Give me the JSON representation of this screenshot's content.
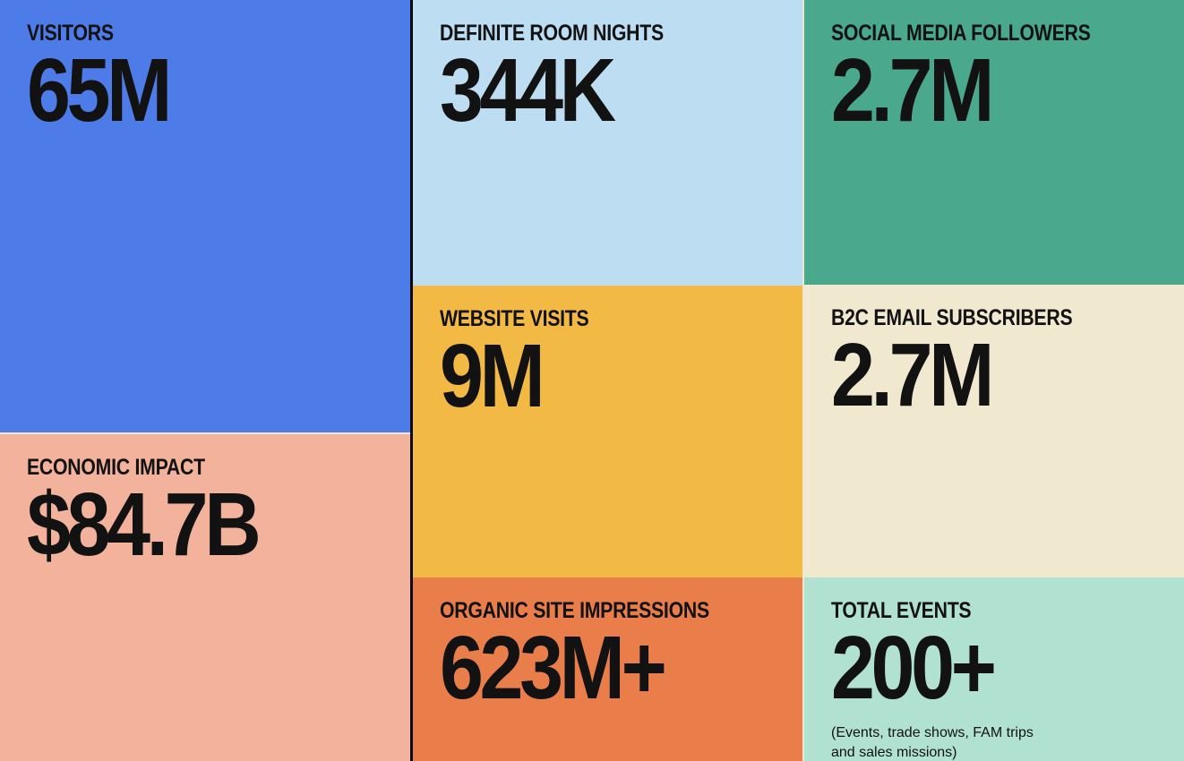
{
  "board": {
    "text_color": "#121212",
    "tiles": [
      {
        "id": "visitors",
        "label": "VISITORS",
        "value": "65M",
        "bg": "#4d7ce9"
      },
      {
        "id": "economic-impact",
        "label": "ECONOMIC IMPACT",
        "value": "$84.7B",
        "bg": "#f2b29b"
      },
      {
        "id": "definite-room-nights",
        "label": "DEFINITE ROOM NIGHTS",
        "value": "344K",
        "bg": "#bdddf3"
      },
      {
        "id": "website-visits",
        "label": "WEBSITE VISITS",
        "value": "9M",
        "bg": "#f3b945"
      },
      {
        "id": "organic-site-impressions",
        "label": "ORGANIC SITE IMPRESSIONS",
        "value": "623M+",
        "bg": "#ea7e4b"
      },
      {
        "id": "social-media-followers",
        "label": "SOCIAL MEDIA FOLLOWERS",
        "value": "2.7M",
        "bg": "#4aa88c"
      },
      {
        "id": "b2c-email-subscribers",
        "label": "B2C EMAIL SUBSCRIBERS",
        "value": "2.7M",
        "bg": "#f1e8d0"
      },
      {
        "id": "total-events",
        "label": "TOTAL EVENTS",
        "value": "200+",
        "bg": "#b1e1d0",
        "note": "(Events, trade shows, FAM trips and sales missions)"
      }
    ],
    "dividers": {
      "vertical_dark": "#0a0a0a",
      "vertical_light": "#efe7d3",
      "horizontal_light": "#eee6e8"
    }
  },
  "chart_data": {
    "type": "table",
    "title": "",
    "metrics": [
      {
        "label": "VISITORS",
        "display": "65M",
        "value": 65000000
      },
      {
        "label": "ECONOMIC IMPACT",
        "display": "$84.7B",
        "value": 84700000000
      },
      {
        "label": "DEFINITE ROOM NIGHTS",
        "display": "344K",
        "value": 344000
      },
      {
        "label": "WEBSITE VISITS",
        "display": "9M",
        "value": 9000000
      },
      {
        "label": "ORGANIC SITE IMPRESSIONS",
        "display": "623M+",
        "value": 623000000
      },
      {
        "label": "SOCIAL MEDIA FOLLOWERS",
        "display": "2.7M",
        "value": 2700000
      },
      {
        "label": "B2C EMAIL SUBSCRIBERS",
        "display": "2.7M",
        "value": 2700000
      },
      {
        "label": "TOTAL EVENTS",
        "display": "200+",
        "value": 200,
        "note": "(Events, trade shows, FAM trips and sales missions)"
      }
    ]
  }
}
